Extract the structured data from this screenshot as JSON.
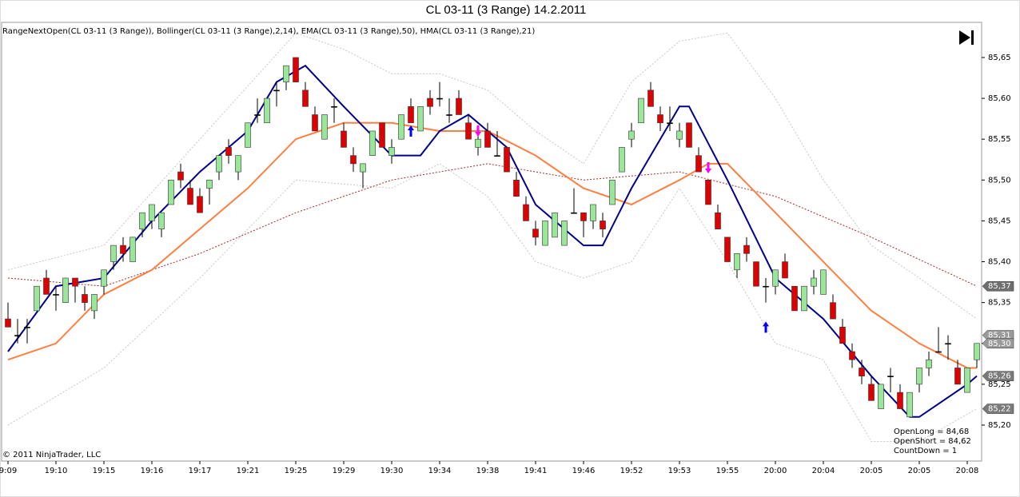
{
  "chart_data": {
    "type": "candlestick",
    "title": "CL 03-11 (3 Range)  14.2.2011",
    "subtitle": "RangeNextOpen(CL 03-11 (3 Range)), Bollinger(CL 03-11 (3 Range),2,14), EMA(CL 03-11 (3 Range),50), HMA(CL 03-11 (3 Range),21)",
    "footer": "© 2011 NinjaTrader, LLC",
    "annotations": [
      "OpenLong = 84,68",
      "OpenShort = 84,62",
      "CountDown = 1"
    ],
    "up_color": "#98e698",
    "down_color": "#e00000",
    "ylim": [
      85.156,
      85.693
    ],
    "yticks": [
      {
        "value": 85.2,
        "label": "85,20"
      },
      {
        "value": 85.25,
        "label": "85,25"
      },
      {
        "value": 85.3,
        "label": "85,30"
      },
      {
        "value": 85.35,
        "label": "85,35"
      },
      {
        "value": 85.4,
        "label": "85,40"
      },
      {
        "value": 85.45,
        "label": "85,45"
      },
      {
        "value": 85.5,
        "label": "85,50"
      },
      {
        "value": 85.55,
        "label": "85,55"
      },
      {
        "value": 85.6,
        "label": "85,60"
      },
      {
        "value": 85.65,
        "label": "85,65"
      }
    ],
    "price_markers": [
      {
        "value": 85.31,
        "label": "85,31",
        "color": "#9a9a9a"
      },
      {
        "value": 85.3,
        "label": "85,30",
        "color": "#9a9a9a"
      },
      {
        "value": 85.37,
        "label": "85,37",
        "color": "#6e6e6e"
      },
      {
        "value": 85.26,
        "label": "85,26",
        "color": "#7a7a7a"
      },
      {
        "value": 85.22,
        "label": "85,22",
        "color": "#7a7a7a"
      }
    ],
    "categories": [
      "9:09",
      null,
      null,
      null,
      null,
      "19:10",
      null,
      null,
      null,
      null,
      "19:15",
      null,
      null,
      null,
      null,
      "19:16",
      null,
      null,
      null,
      null,
      "19:17",
      null,
      null,
      null,
      null,
      "19:21",
      null,
      null,
      null,
      null,
      "19:25",
      null,
      null,
      null,
      null,
      "19:29",
      null,
      null,
      null,
      null,
      "19:30",
      null,
      null,
      null,
      null,
      "19:34",
      null,
      null,
      null,
      null,
      "19:38",
      null,
      null,
      null,
      null,
      "19:41",
      null,
      null,
      null,
      null,
      "19:46",
      null,
      null,
      null,
      null,
      "19:52",
      null,
      null,
      null,
      null,
      "19:53",
      null,
      null,
      null,
      null,
      "19:55",
      null,
      null,
      null,
      null,
      "20:00",
      null,
      null,
      null,
      null,
      "20:04",
      null,
      null,
      null,
      null,
      "20:05",
      null,
      null,
      null,
      null,
      "20:05",
      null,
      null,
      null,
      null,
      "20:08",
      null
    ],
    "ohlc": [
      [
        85.33,
        85.35,
        85.32,
        85.32
      ],
      [
        85.31,
        85.33,
        85.3,
        85.31
      ],
      [
        85.32,
        85.33,
        85.3,
        85.32
      ],
      [
        85.34,
        85.37,
        85.34,
        85.37
      ],
      [
        85.38,
        85.39,
        85.36,
        85.36
      ],
      [
        85.36,
        85.37,
        85.34,
        85.36
      ],
      [
        85.35,
        85.38,
        85.35,
        85.38
      ],
      [
        85.38,
        85.38,
        85.35,
        85.37
      ],
      [
        85.36,
        85.37,
        85.34,
        85.35
      ],
      [
        85.34,
        85.36,
        85.33,
        85.36
      ],
      [
        85.37,
        85.39,
        85.36,
        85.39
      ],
      [
        85.4,
        85.42,
        85.39,
        85.42
      ],
      [
        85.42,
        85.43,
        85.4,
        85.41
      ],
      [
        85.4,
        85.43,
        85.4,
        85.43
      ],
      [
        85.44,
        85.46,
        85.43,
        85.46
      ],
      [
        85.45,
        85.47,
        85.44,
        85.47
      ],
      [
        85.44,
        85.46,
        85.43,
        85.46
      ],
      [
        85.47,
        85.5,
        85.47,
        85.5
      ],
      [
        85.51,
        85.52,
        85.49,
        85.5
      ],
      [
        85.49,
        85.5,
        85.47,
        85.47
      ],
      [
        85.48,
        85.49,
        85.46,
        85.46
      ],
      [
        85.49,
        85.5,
        85.47,
        85.5
      ],
      [
        85.51,
        85.53,
        85.5,
        85.53
      ],
      [
        85.54,
        85.55,
        85.52,
        85.53
      ],
      [
        85.51,
        85.53,
        85.5,
        85.53
      ],
      [
        85.54,
        85.57,
        85.54,
        85.57
      ],
      [
        85.58,
        85.6,
        85.57,
        85.58
      ],
      [
        85.57,
        85.6,
        85.57,
        85.6
      ],
      [
        85.61,
        85.62,
        85.59,
        85.61
      ],
      [
        85.62,
        85.64,
        85.61,
        85.64
      ],
      [
        85.65,
        85.65,
        85.62,
        85.62
      ],
      [
        85.61,
        85.62,
        85.59,
        85.59
      ],
      [
        85.58,
        85.59,
        85.56,
        85.56
      ],
      [
        85.55,
        85.58,
        85.55,
        85.58
      ],
      [
        85.59,
        85.6,
        85.57,
        85.59
      ],
      [
        85.56,
        85.57,
        85.54,
        85.54
      ],
      [
        85.53,
        85.54,
        85.51,
        85.52
      ],
      [
        85.51,
        85.52,
        85.49,
        85.52
      ],
      [
        85.53,
        85.56,
        85.53,
        85.56
      ],
      [
        85.57,
        85.57,
        85.54,
        85.54
      ],
      [
        85.53,
        85.55,
        85.52,
        85.54
      ],
      [
        85.55,
        85.58,
        85.55,
        85.58
      ],
      [
        85.59,
        85.6,
        85.57,
        85.57
      ],
      [
        85.56,
        85.59,
        85.56,
        85.59
      ],
      [
        85.6,
        85.61,
        85.58,
        85.59
      ],
      [
        85.6,
        85.62,
        85.59,
        85.6
      ],
      [
        85.58,
        85.6,
        85.57,
        85.58
      ],
      [
        85.6,
        85.61,
        85.58,
        85.58
      ],
      [
        85.57,
        85.58,
        85.55,
        85.55
      ],
      [
        85.54,
        85.56,
        85.53,
        85.55
      ],
      [
        85.56,
        85.57,
        85.54,
        85.54
      ],
      [
        85.53,
        85.56,
        85.53,
        85.53
      ],
      [
        85.54,
        85.54,
        85.51,
        85.51
      ],
      [
        85.5,
        85.51,
        85.48,
        85.48
      ],
      [
        85.47,
        85.48,
        85.45,
        85.45
      ],
      [
        85.44,
        85.45,
        85.42,
        85.43
      ],
      [
        85.42,
        85.45,
        85.42,
        85.45
      ],
      [
        85.43,
        85.46,
        85.43,
        85.46
      ],
      [
        85.42,
        85.45,
        85.42,
        85.45
      ],
      [
        85.46,
        85.49,
        85.46,
        85.46
      ],
      [
        85.46,
        85.46,
        85.43,
        85.45
      ],
      [
        85.45,
        85.47,
        85.44,
        85.47
      ],
      [
        85.45,
        85.46,
        85.43,
        85.44
      ],
      [
        85.47,
        85.5,
        85.47,
        85.5
      ],
      [
        85.51,
        85.54,
        85.51,
        85.54
      ],
      [
        85.55,
        85.57,
        85.54,
        85.56
      ],
      [
        85.57,
        85.6,
        85.57,
        85.6
      ],
      [
        85.61,
        85.62,
        85.59,
        85.59
      ],
      [
        85.58,
        85.59,
        85.56,
        85.57
      ],
      [
        85.57,
        85.59,
        85.56,
        85.57
      ],
      [
        85.55,
        85.57,
        85.54,
        85.56
      ],
      [
        85.57,
        85.57,
        85.54,
        85.54
      ],
      [
        85.53,
        85.54,
        85.51,
        85.51
      ],
      [
        85.5,
        85.5,
        85.47,
        85.47
      ],
      [
        85.46,
        85.47,
        85.44,
        85.44
      ],
      [
        85.43,
        85.43,
        85.4,
        85.4
      ],
      [
        85.39,
        85.41,
        85.38,
        85.41
      ],
      [
        85.42,
        85.43,
        85.4,
        85.41
      ],
      [
        85.4,
        85.4,
        85.37,
        85.37
      ],
      [
        85.37,
        85.38,
        85.35,
        85.37
      ],
      [
        85.37,
        85.39,
        85.36,
        85.39
      ],
      [
        85.4,
        85.41,
        85.38,
        85.38
      ],
      [
        85.37,
        85.37,
        85.34,
        85.34
      ],
      [
        85.34,
        85.37,
        85.34,
        85.37
      ],
      [
        85.37,
        85.39,
        85.36,
        85.38
      ],
      [
        85.36,
        85.39,
        85.36,
        85.39
      ],
      [
        85.35,
        85.36,
        85.33,
        85.33
      ],
      [
        85.32,
        85.33,
        85.3,
        85.3
      ],
      [
        85.29,
        85.3,
        85.27,
        85.28
      ],
      [
        85.27,
        85.28,
        85.25,
        85.26
      ],
      [
        85.25,
        85.26,
        85.23,
        85.23
      ],
      [
        85.22,
        85.25,
        85.22,
        85.25
      ],
      [
        85.26,
        85.27,
        85.24,
        85.26
      ],
      [
        85.24,
        85.25,
        85.22,
        85.22
      ],
      [
        85.21,
        85.24,
        85.21,
        85.24
      ],
      [
        85.25,
        85.27,
        85.24,
        85.27
      ],
      [
        85.27,
        85.29,
        85.26,
        85.28
      ],
      [
        85.29,
        85.32,
        85.29,
        85.29
      ],
      [
        85.3,
        85.31,
        85.28,
        85.3
      ],
      [
        85.27,
        85.28,
        85.25,
        85.25
      ],
      [
        85.24,
        85.27,
        85.24,
        85.27
      ],
      [
        85.28,
        85.3,
        85.27,
        85.3
      ]
    ],
    "series": [
      {
        "color": "#c8c8c8",
        "style": "dotted",
        "width": 1,
        "x": [
          0,
          10,
          20,
          30,
          35,
          40,
          45,
          50,
          55,
          60,
          65,
          70,
          75,
          80,
          85,
          90,
          95,
          101
        ],
        "values": [
          85.39,
          85.42,
          85.55,
          85.68,
          85.66,
          85.63,
          85.63,
          85.61,
          85.56,
          85.52,
          85.62,
          85.67,
          85.68,
          85.6,
          85.5,
          85.42,
          85.38,
          85.33
        ]
      },
      {
        "color": "#c8c8c8",
        "style": "dotted",
        "width": 1,
        "x": [
          0,
          10,
          20,
          30,
          40,
          45,
          50,
          55,
          60,
          65,
          70,
          75,
          80,
          85,
          90,
          95,
          101
        ],
        "values": [
          85.2,
          85.27,
          85.38,
          85.5,
          85.49,
          85.52,
          85.48,
          85.4,
          85.38,
          85.4,
          85.49,
          85.4,
          85.3,
          85.28,
          85.18,
          85.18,
          85.22
        ]
      },
      {
        "color": "#a52a2a",
        "style": "dotted",
        "width": 1,
        "x": [
          0,
          10,
          20,
          30,
          40,
          50,
          60,
          70,
          80,
          90,
          101
        ],
        "values": [
          85.38,
          85.37,
          85.41,
          85.46,
          85.5,
          85.52,
          85.5,
          85.51,
          85.48,
          85.43,
          85.37
        ]
      },
      {
        "color": "#ff7f40",
        "style": "solid",
        "width": 2,
        "x": [
          0,
          5,
          10,
          15,
          20,
          25,
          30,
          35,
          40,
          45,
          50,
          55,
          60,
          65,
          70,
          73,
          75,
          80,
          85,
          90,
          95,
          100,
          101
        ],
        "values": [
          85.28,
          85.3,
          85.36,
          85.39,
          85.44,
          85.49,
          85.55,
          85.57,
          85.57,
          85.56,
          85.56,
          85.53,
          85.49,
          85.47,
          85.5,
          85.52,
          85.52,
          85.46,
          85.4,
          85.34,
          85.3,
          85.27,
          85.27
        ]
      },
      {
        "color": "#00008b",
        "style": "solid",
        "width": 2,
        "x": [
          0,
          5,
          10,
          15,
          20,
          25,
          28,
          31,
          35,
          40,
          43,
          45,
          48,
          52,
          55,
          60,
          62,
          65,
          70,
          71,
          75,
          80,
          85,
          90,
          94,
          95,
          100,
          101
        ],
        "values": [
          85.29,
          85.37,
          85.38,
          85.45,
          85.51,
          85.56,
          85.62,
          85.64,
          85.59,
          85.53,
          85.53,
          85.56,
          85.58,
          85.54,
          85.47,
          85.42,
          85.42,
          85.49,
          85.59,
          85.59,
          85.5,
          85.38,
          85.33,
          85.26,
          85.21,
          85.21,
          85.25,
          85.26
        ]
      }
    ],
    "signals": [
      {
        "bar": 42,
        "price": 85.56,
        "dir": "up",
        "color": "#0000ff"
      },
      {
        "bar": 49,
        "price": 85.56,
        "dir": "down",
        "color": "#ff00ff"
      },
      {
        "bar": 73,
        "price": 85.515,
        "dir": "down",
        "color": "#ff00ff"
      },
      {
        "bar": 79,
        "price": 85.32,
        "dir": "up",
        "color": "#0000ff"
      }
    ]
  }
}
